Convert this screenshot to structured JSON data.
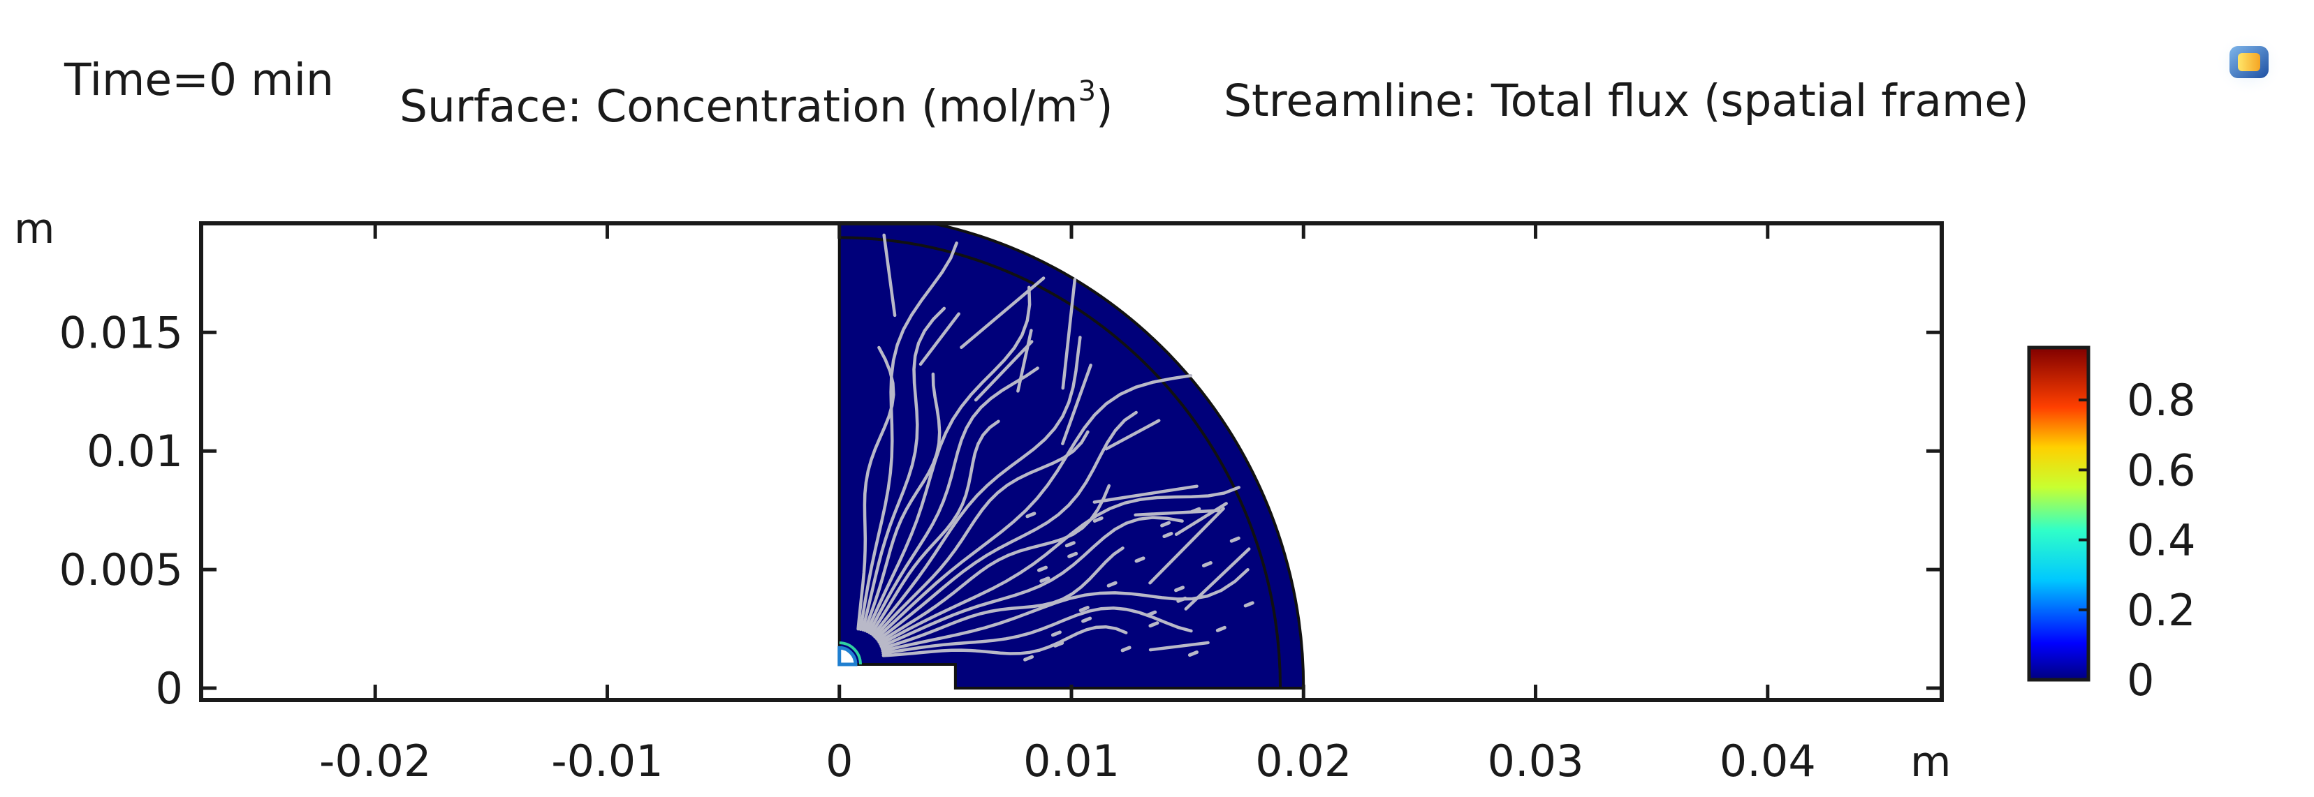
{
  "header": {
    "time_label": "Time=0 min",
    "surface_label_prefix": "Surface: Concentration (mol/m",
    "surface_label_exp": "3",
    "surface_label_suffix": ")",
    "streamline_label": "Streamline: Total flux (spatial frame)"
  },
  "icons": {
    "top_right": "comsol-graphics-icon"
  },
  "colors": {
    "domain_fill": "#00007a",
    "streamline": "#b9b9c8",
    "frame": "#1a1a1a"
  },
  "chart_data": {
    "type": "heatmap",
    "description_quantity": "Concentration",
    "xlabel": "m",
    "ylabel": "m",
    "xlim": [
      -0.0275,
      0.0475
    ],
    "ylim": [
      -0.0005,
      0.0196
    ],
    "x_ticks": [
      -0.02,
      -0.01,
      0,
      0.01,
      0.02,
      0.03,
      0.04
    ],
    "x_tick_labels": [
      "-0.02",
      "-0.01",
      "0",
      "0.01",
      "0.02",
      "0.03",
      "0.04"
    ],
    "y_ticks": [
      0,
      0.005,
      0.01,
      0.015
    ],
    "y_tick_labels": [
      "0",
      "0.005",
      "0.01",
      "0.015"
    ],
    "geometry": {
      "outer_radius": 0.02,
      "inner_radius": 0.019,
      "notch_x": 0.005,
      "notch_y": 0.001,
      "well_radius": 0.0007
    },
    "colorbar": {
      "min": 0,
      "max": 0.95,
      "ticks": [
        0,
        0.2,
        0.4,
        0.6,
        0.8
      ],
      "tick_labels": [
        "0",
        "0.2",
        "0.4",
        "0.6",
        "0.8"
      ],
      "colormap": "rainbow"
    },
    "field_value": 0,
    "grid": false
  }
}
